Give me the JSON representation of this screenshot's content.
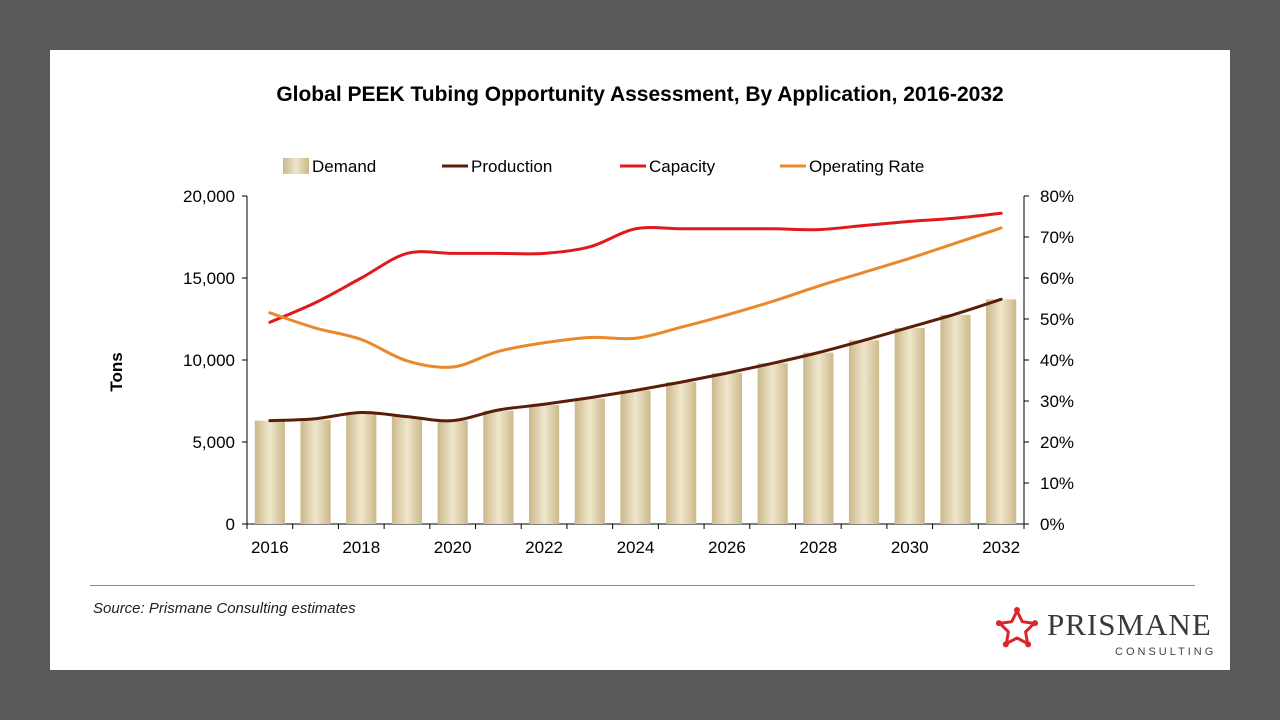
{
  "chart_data": {
    "type": "bar",
    "title": "Global PEEK Tubing Opportunity Assessment,  By Application, 2016-2032",
    "ylabel": "Tons",
    "y2label": "",
    "ylim": [
      0,
      20000
    ],
    "y2lim": [
      0,
      80
    ],
    "yticks": [
      "0",
      "5,000",
      "10,000",
      "15,000",
      "20,000"
    ],
    "y2ticks": [
      "0%",
      "10%",
      "20%",
      "30%",
      "40%",
      "50%",
      "60%",
      "70%",
      "80%"
    ],
    "grid": false,
    "legend_position": "top",
    "x": [
      2016,
      2017,
      2018,
      2019,
      2020,
      2021,
      2022,
      2023,
      2024,
      2025,
      2026,
      2027,
      2028,
      2029,
      2030,
      2031,
      2032
    ],
    "xtick_labels": [
      "2016",
      "2018",
      "2020",
      "2022",
      "2024",
      "2026",
      "2028",
      "2030",
      "2032"
    ],
    "series": [
      {
        "name": "Demand",
        "type": "bar",
        "axis": "left",
        "color": "#d9cba1",
        "values": [
          6300,
          6350,
          6800,
          6550,
          6300,
          6900,
          7250,
          7650,
          8150,
          8650,
          9200,
          9800,
          10450,
          11200,
          11950,
          12750,
          13700
        ]
      },
      {
        "name": "Production",
        "type": "line",
        "axis": "left",
        "color": "#5a1e08",
        "values": [
          6300,
          6420,
          6800,
          6550,
          6300,
          6950,
          7300,
          7700,
          8150,
          8650,
          9200,
          9800,
          10450,
          11200,
          12000,
          12800,
          13700
        ]
      },
      {
        "name": "Capacity",
        "type": "line",
        "axis": "left",
        "color": "#e0191c",
        "values": [
          12300,
          13500,
          15000,
          16500,
          16500,
          16500,
          16500,
          16900,
          18000,
          18000,
          18000,
          18000,
          17950,
          18200,
          18450,
          18650,
          18950
        ]
      },
      {
        "name": "Operating Rate",
        "type": "line",
        "axis": "right",
        "color": "#e8892a",
        "values": [
          51.5,
          47.8,
          45.0,
          39.8,
          38.3,
          42.1,
          44.2,
          45.5,
          45.3,
          48.0,
          51.0,
          54.3,
          58.0,
          61.4,
          64.8,
          68.5,
          72.2
        ]
      }
    ]
  },
  "footer": {
    "source": "Source: Prismane Consulting estimates"
  },
  "logo": {
    "name": "PRISMANE",
    "tagline": "CONSULTING",
    "mark_color": "#d9262b"
  }
}
